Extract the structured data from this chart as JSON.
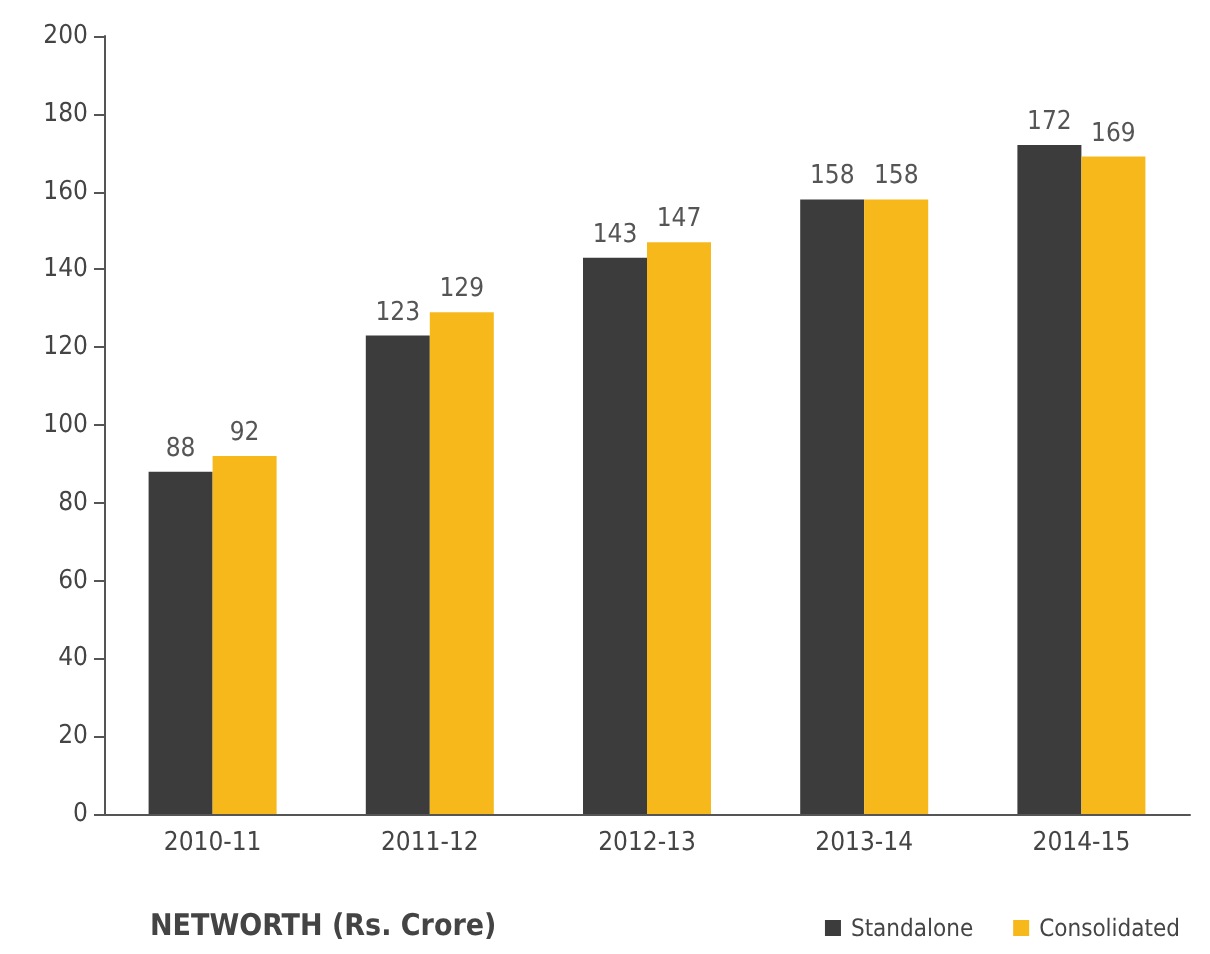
{
  "chart_data": {
    "type": "bar",
    "title": "NETWORTH (Rs. Crore)",
    "categories": [
      "2010-11",
      "2011-12",
      "2012-13",
      "2013-14",
      "2014-15"
    ],
    "series": [
      {
        "name": "Standalone",
        "color": "#3c3c3c",
        "values": [
          88,
          123,
          143,
          158,
          172
        ]
      },
      {
        "name": "Consolidated",
        "color": "#f7b81c",
        "values": [
          92,
          129,
          147,
          158,
          169
        ]
      }
    ],
    "ylim": [
      0,
      200
    ],
    "yticks": [
      0,
      20,
      40,
      60,
      80,
      100,
      120,
      140,
      160,
      180,
      200
    ],
    "grid": false,
    "legend": "bottom right",
    "data_labels": true
  }
}
